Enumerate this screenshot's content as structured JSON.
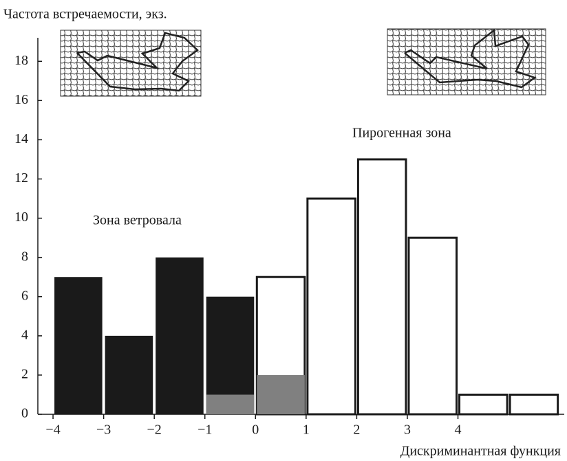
{
  "chart_data": {
    "type": "histogram",
    "title": "Частота встречаемости, экз.",
    "x_label": "Дискриминантная функция",
    "annotations": [
      "Зона ветровала",
      "Пирогенная зона"
    ],
    "xlim": [
      -4.3,
      6.1
    ],
    "xticks": [
      -4,
      -3,
      -2,
      -1,
      0,
      1,
      2,
      3,
      4
    ],
    "ylim": [
      0,
      19.2
    ],
    "yticks": [
      0,
      2,
      4,
      6,
      8,
      10,
      12,
      14,
      16,
      18
    ],
    "series": [
      {
        "color": "#ffffff",
        "bins": [
          0,
          1,
          2,
          3,
          4,
          5,
          6
        ],
        "counts": [
          7,
          11,
          13,
          9,
          1,
          1
        ]
      },
      {
        "color": "#1a1a1a",
        "bins": [
          -4,
          -3,
          -2,
          -1,
          0
        ],
        "counts": [
          7,
          4,
          8,
          6
        ]
      },
      {
        "color": "#808080",
        "bins": [
          -1,
          0,
          1
        ],
        "counts": [
          1,
          2
        ]
      }
    ]
  }
}
